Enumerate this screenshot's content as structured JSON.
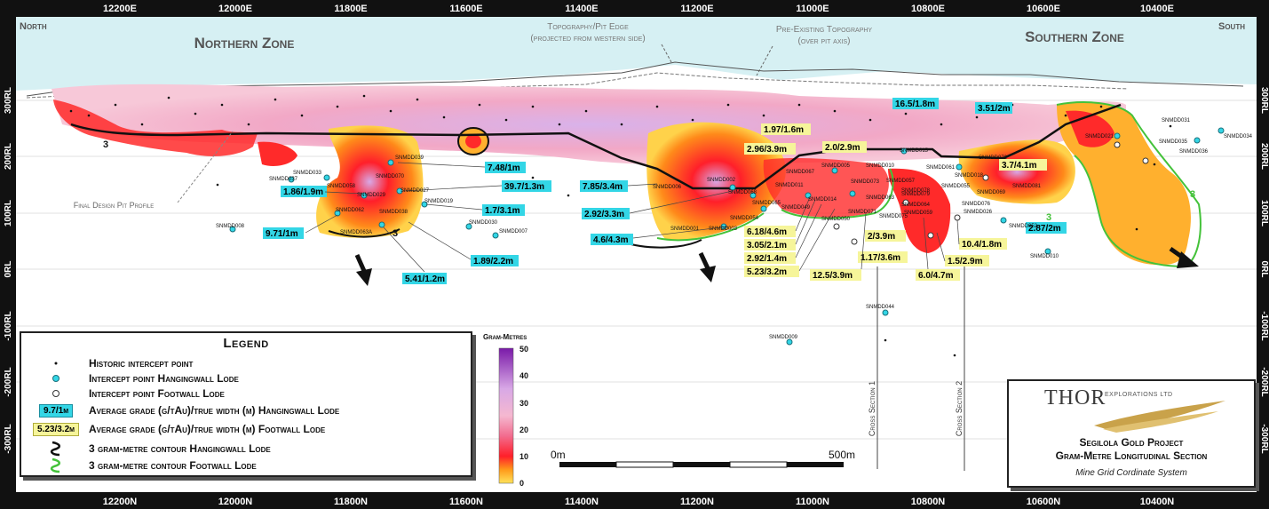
{
  "top_axis": [
    "12200E",
    "12000E",
    "11800E",
    "11600E",
    "11400E",
    "11200E",
    "11000E",
    "10800E",
    "10600E",
    "10400E"
  ],
  "bottom_axis": [
    "12200N",
    "12000N",
    "11800N",
    "11600N",
    "11400N",
    "11200N",
    "11000N",
    "10800N",
    "10600N",
    "10400N"
  ],
  "rl_left": [
    "300RL",
    "200RL",
    "100RL",
    "0RL",
    "-100RL",
    "-200RL",
    "-300RL"
  ],
  "rl_right": [
    "300RL",
    "200RL",
    "100RL",
    "0RL",
    "-100RL",
    "-200RL",
    "-300RL"
  ],
  "corner": {
    "north": "North",
    "south": "South"
  },
  "zones": {
    "northern": "Northern Zone",
    "southern": "Southern Zone"
  },
  "annotations": {
    "topo_line1": "Topography/Pit Edge",
    "topo_line2": "(projected from western side)",
    "pre_line1": "Pre-Existing Topography",
    "pre_line2": "(over pit axis)",
    "pit": "Final Design Pit Profile",
    "xs1": "Cross Section 1",
    "xs2": "Cross Section 2"
  },
  "hw_labels": [
    "16.5/1.8m",
    "3.51/2m",
    "7.48/1m",
    "39.7/1.3m",
    "1.86/1.9m",
    "7.85/3.4m",
    "1.7/3.1m",
    "2.92/3.3m",
    "9.71/1m",
    "4.6/4.3m",
    "1.89/2.2m",
    "5.41/1.2m",
    "2.87/2m"
  ],
  "fw_labels": [
    "1.97/1.6m",
    "2.0/2.9m",
    "2.96/3.9m",
    "3.7/4.1m",
    "6.18/4.6m",
    "3.05/2.1m",
    "2.92/1.4m",
    "5.23/3.2m",
    "2/3.9m",
    "1.17/3.6m",
    "12.5/3.9m",
    "6.0/4.7m",
    "1.5/2.9m",
    "10.4/1.8m"
  ],
  "holes": [
    "SNMDD033",
    "SNMDD037",
    "SNMDD058",
    "SNMDD039",
    "SNMDD070",
    "SNMDD029",
    "SNMDD027",
    "SNMDD019",
    "SNMDD062",
    "SNMDD038",
    "SNMDD063A",
    "SNMDD008",
    "SNMDD030",
    "SNMDD007",
    "SNMDD006",
    "SNMDD002",
    "SNMDD068",
    "SNMDD065",
    "SNMDD054",
    "SNMDD001",
    "SNMDD003",
    "SNMDD067",
    "SNMDD011",
    "SNMDD005",
    "SNMDD010",
    "SNMDD015",
    "SNMDD061",
    "SNMDD072",
    "SNMDD014",
    "SNMDD073",
    "SNMDD057",
    "SNMDD049",
    "SNMDD071",
    "SNMDD064",
    "SNMDD078",
    "SNMDD075",
    "SNMDD050",
    "SNMDD059",
    "SNMDD079",
    "SNMDD055",
    "SNMDD069",
    "SNMDD081",
    "SNMDD076",
    "SNMDD026",
    "SNMDD052",
    "SNMDD021",
    "SNMDD031",
    "SNMDD035",
    "SNMDD034",
    "SNMDD036",
    "SNMDD010",
    "SNMDD044",
    "SNMDD009",
    "SNMDD018",
    "SNMDD063"
  ],
  "scale": {
    "start": "0m",
    "end": "500m"
  },
  "colorbar": {
    "title": "Gram-Metres",
    "ticks": [
      "50",
      "40",
      "30",
      "20",
      "10",
      "0"
    ]
  },
  "legend": {
    "title": "Legend",
    "historic": "Historic intercept point",
    "hw_point": "Intercept point Hangingwall Lode",
    "fw_point": "Intercept point Footwall Lode",
    "hw_sample": "9.7/1m",
    "hw_grade": "Average grade (g/tAu)/true width (m) Hangingwall Lode",
    "fw_sample": "5.23/3.2m",
    "fw_grade": "Average grade (g/tAu)/true width (m) Footwall Lode",
    "hw_contour": "3 gram-metre contour Hangingwall Lode",
    "fw_contour": "3 gram-metre contour Footwall Lode"
  },
  "company": {
    "name": "Thor",
    "suffix": "Explorations Ltd",
    "project": "Segilola Gold Project",
    "section": "Gram-Metre Longitudinal Section",
    "grid": "Mine Grid Cordinate System"
  },
  "colors": {
    "hw_box": "#33d6e6",
    "fw_box": "#f6f59a",
    "sky": "#d6f0f3",
    "hw_contour": "#111111",
    "fw_contour": "#44c23a"
  }
}
